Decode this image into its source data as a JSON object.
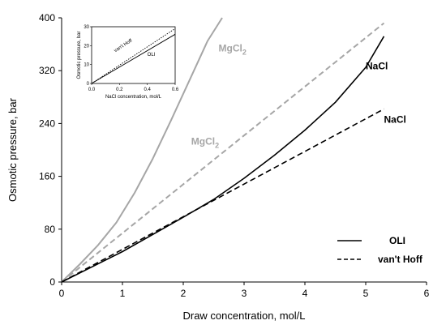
{
  "chart_data": [
    {
      "type": "line",
      "xlabel": "Draw concentration, mol/L",
      "ylabel": "Osmotic pressure, bar",
      "xlim": [
        0,
        6
      ],
      "ylim": [
        0,
        400
      ],
      "xticks": [
        "0",
        "1",
        "2",
        "3",
        "4",
        "5",
        "6"
      ],
      "yticks": [
        "0",
        "80",
        "160",
        "240",
        "320",
        "400"
      ],
      "grid": false,
      "series": [
        {
          "key": "mgcl2_oli",
          "color": "#a6a6a6",
          "dash": "solid",
          "x": [
            0,
            0.3,
            0.6,
            0.9,
            1.2,
            1.5,
            1.8,
            2.1,
            2.4,
            2.64
          ],
          "y": [
            0,
            27,
            56,
            90,
            135,
            187,
            245,
            305,
            365,
            400
          ]
        },
        {
          "key": "mgcl2_vanthoff",
          "color": "#a6a6a6",
          "dash": "dashed",
          "x": [
            0,
            5.3
          ],
          "y": [
            0,
            392
          ]
        },
        {
          "key": "nacl_oli",
          "color": "#000000",
          "dash": "solid",
          "x": [
            0,
            0.5,
            1,
            1.5,
            2,
            2.5,
            3,
            3.5,
            4,
            4.5,
            5,
            5.3
          ],
          "y": [
            0,
            23,
            46,
            72,
            98,
            125,
            157,
            192,
            230,
            272,
            325,
            372
          ]
        },
        {
          "key": "nacl_vanthoff",
          "color": "#000000",
          "dash": "dashed",
          "x": [
            0,
            5.3
          ],
          "y": [
            0,
            262
          ]
        }
      ],
      "annotations": [
        {
          "text": "MgCl",
          "sub": "2",
          "x": 2.58,
          "y": 349,
          "color": "#a6a6a6"
        },
        {
          "text": "MgCl",
          "sub": "2",
          "x": 2.13,
          "y": 208,
          "color": "#a6a6a6"
        },
        {
          "text": "NaCl",
          "sub": "",
          "x": 5.0,
          "y": 322,
          "color": "#000000"
        },
        {
          "text": "NaCl",
          "sub": "",
          "x": 5.3,
          "y": 241,
          "color": "#000000"
        }
      ],
      "legend": {
        "placement": "bottom-right",
        "items": [
          {
            "label": "OLI",
            "dash": "solid",
            "color": "#000000"
          },
          {
            "label": "van't Hoff",
            "dash": "dashed",
            "color": "#000000"
          }
        ]
      }
    },
    {
      "type": "line",
      "placement": "inset-top-left",
      "xlabel": "NaCl concentration, mol/L",
      "ylabel": "Osmotic pressure, bar",
      "xlim": [
        0,
        0.6
      ],
      "ylim": [
        0,
        30
      ],
      "xticks": [
        "0.0",
        "0.2",
        "0.4",
        "0.6"
      ],
      "yticks": [
        "0",
        "10",
        "20",
        "30"
      ],
      "series": [
        {
          "key": "inset_vanthoff",
          "color": "#000000",
          "dash": "dotted",
          "x": [
            0,
            0.6
          ],
          "y": [
            0,
            29
          ]
        },
        {
          "key": "inset_oli",
          "color": "#000000",
          "dash": "solid",
          "x": [
            0,
            0.6
          ],
          "y": [
            0,
            26
          ]
        }
      ],
      "annotations": [
        {
          "text": "van't Hoff",
          "x": 0.17,
          "y": 16.5,
          "rotate": -33
        },
        {
          "text": "OLI",
          "x": 0.4,
          "y": 14.5,
          "rotate": 0
        }
      ]
    }
  ]
}
